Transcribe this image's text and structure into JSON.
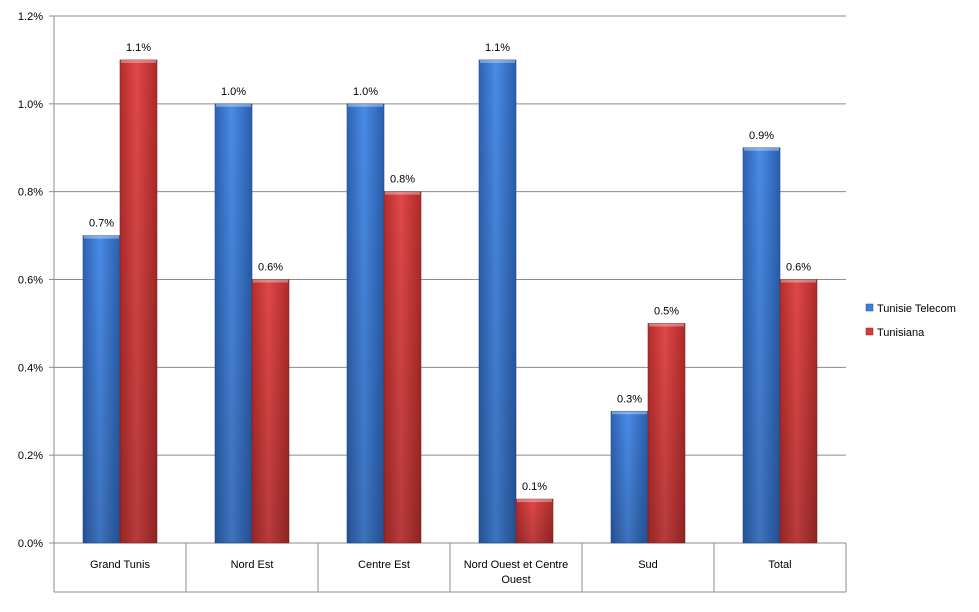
{
  "chart_data": {
    "type": "bar",
    "categories": [
      "Grand Tunis",
      "Nord Est",
      "Centre Est",
      "Nord Ouest et Centre Ouest",
      "Sud",
      "Total"
    ],
    "series": [
      {
        "name": "Tunisie Telecom",
        "color": "#3c7dd9",
        "values": [
          0.7,
          1.0,
          1.0,
          1.1,
          0.3,
          0.9
        ]
      },
      {
        "name": "Tunisiana",
        "color": "#d43c3c",
        "values": [
          1.1,
          0.6,
          0.8,
          0.1,
          0.5,
          0.6
        ]
      }
    ],
    "value_labels": [
      [
        "0.7%",
        "1.0%",
        "1.0%",
        "1.1%",
        "0.3%",
        "0.9%"
      ],
      [
        "1.1%",
        "0.6%",
        "0.8%",
        "0.1%",
        "0.5%",
        "0.6%"
      ]
    ],
    "y_ticks": [
      0,
      0.2,
      0.4,
      0.6,
      0.8,
      1.0,
      1.2
    ],
    "y_tick_labels": [
      "0.0%",
      "0.2%",
      "0.4%",
      "0.6%",
      "0.8%",
      "1.0%",
      "1.2%"
    ],
    "ylim": [
      0,
      1.2
    ],
    "grid": true,
    "legend_position": "right",
    "title": "",
    "xlabel": "",
    "ylabel": ""
  }
}
